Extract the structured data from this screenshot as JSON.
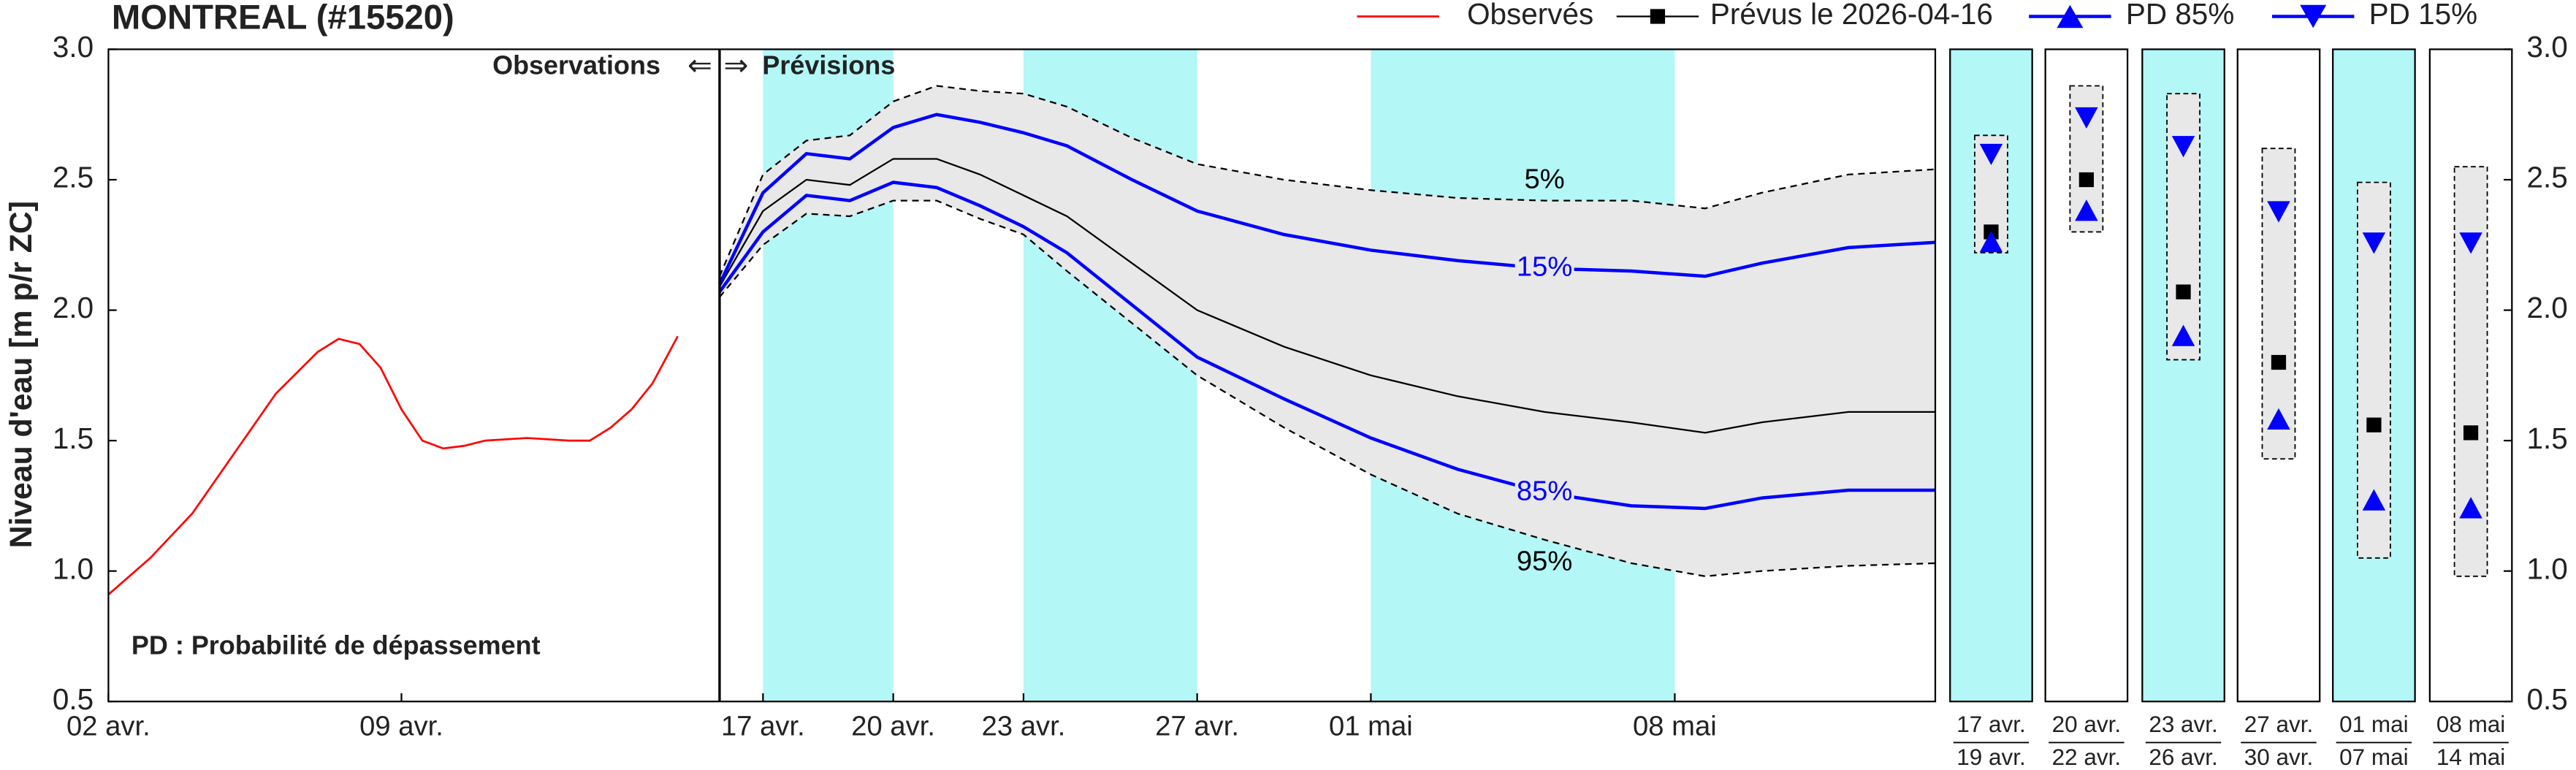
{
  "chart_data": [
    {
      "type": "line",
      "title": "MONTREAL (#15520)",
      "y_label": "Niveau d'eau [m p/r ZC]",
      "annotations": {
        "observations": "Observations",
        "left_arrow": "⇐",
        "right_arrow": "⇒",
        "forecasts": "Prévisions",
        "note": "PD : Probabilité de dépassement"
      },
      "ylim": [
        0.5,
        3.0
      ],
      "yticks": [
        0.5,
        {
          "value": 1,
          "label": "1.0"
        },
        1.5,
        {
          "value": 2,
          "label": "2.0"
        },
        2.5,
        {
          "value": 3,
          "label": "3.0"
        }
      ],
      "yminor": [
        0.6,
        0.7,
        0.8,
        0.9,
        1.1,
        1.2,
        1.3,
        1.4,
        1.6,
        1.7,
        1.8,
        1.9,
        2.1,
        2.2,
        2.3,
        2.4,
        2.6,
        2.7,
        2.8,
        2.9
      ],
      "grid": true,
      "observed": {
        "name": "Observés",
        "color": "#ff0000",
        "xlim": [
          2,
          16.6
        ],
        "xticks": [
          {
            "value": 2,
            "label": "02 avr."
          },
          {
            "value": 9,
            "label": "09 avr."
          }
        ],
        "xminor": [
          3,
          4,
          5,
          6,
          7,
          8,
          10,
          11,
          12,
          13,
          14,
          15,
          16
        ],
        "x": [
          2,
          3,
          4,
          5,
          6,
          7,
          7.5,
          8,
          8.5,
          9,
          9.5,
          10,
          10.5,
          11,
          12,
          13,
          13.5,
          14,
          14.5,
          15,
          15.6
        ],
        "values": [
          0.91,
          1.05,
          1.22,
          1.45,
          1.68,
          1.84,
          1.89,
          1.87,
          1.78,
          1.62,
          1.5,
          1.47,
          1.48,
          1.5,
          1.51,
          1.5,
          1.5,
          1.55,
          1.62,
          1.72,
          1.9
        ]
      },
      "forecast": {
        "xlim": [
          16,
          44
        ],
        "xticks": [
          {
            "value": 17,
            "label": "17 avr."
          },
          {
            "value": 20,
            "label": "20 avr."
          },
          {
            "value": 23,
            "label": "23 avr."
          },
          {
            "value": 27,
            "label": "27 avr."
          },
          {
            "value": 31,
            "label": "01 mai"
          },
          {
            "value": 38,
            "label": "08 mai"
          }
        ],
        "xminor": [
          18,
          19,
          21,
          22,
          24,
          25,
          26,
          28,
          29,
          30,
          32,
          33,
          34,
          35,
          36,
          37,
          39,
          40,
          41,
          42,
          43
        ],
        "shaded_periods": [
          [
            17,
            20
          ],
          [
            23,
            27
          ],
          [
            31,
            38
          ]
        ],
        "shade_color": "#b3f7f7",
        "band_color": "#e8e8e8",
        "x": [
          16,
          17,
          18,
          19,
          20,
          21,
          22,
          23,
          24,
          25.5,
          27,
          29,
          31,
          33,
          35,
          37,
          38.7,
          40,
          42,
          44
        ],
        "series": [
          {
            "color": "#000000",
            "values": [
              2.09,
              2.38,
              2.5,
              2.48,
              2.58,
              2.58,
              2.52,
              2.44,
              2.36,
              2.18,
              2.0,
              1.86,
              1.75,
              1.67,
              1.61,
              1.57,
              1.53,
              1.57,
              1.61,
              1.61
            ]
          },
          {
            "color": "#0000ff",
            "label": "15%",
            "values": [
              2.1,
              2.45,
              2.6,
              2.58,
              2.7,
              2.75,
              2.72,
              2.68,
              2.63,
              2.5,
              2.38,
              2.29,
              2.23,
              2.19,
              2.16,
              2.15,
              2.13,
              2.18,
              2.24,
              2.26
            ]
          },
          {
            "color": "#0000ff",
            "label": "85%",
            "values": [
              2.07,
              2.3,
              2.44,
              2.42,
              2.49,
              2.47,
              2.4,
              2.32,
              2.22,
              2.02,
              1.82,
              1.66,
              1.51,
              1.39,
              1.3,
              1.25,
              1.24,
              1.28,
              1.31,
              1.31
            ]
          },
          {
            "color": "#000000",
            "dash": true,
            "label": "5%",
            "values": [
              2.13,
              2.52,
              2.65,
              2.67,
              2.8,
              2.86,
              2.84,
              2.83,
              2.78,
              2.66,
              2.56,
              2.5,
              2.46,
              2.43,
              2.42,
              2.42,
              2.39,
              2.45,
              2.52,
              2.54
            ]
          },
          {
            "color": "#000000",
            "dash": true,
            "label": "95%",
            "values": [
              2.05,
              2.25,
              2.37,
              2.36,
              2.42,
              2.42,
              2.35,
              2.29,
              2.15,
              1.95,
              1.75,
              1.55,
              1.37,
              1.22,
              1.12,
              1.03,
              0.98,
              1.0,
              1.02,
              1.03
            ]
          }
        ]
      }
    },
    {
      "type": "range",
      "ylim": [
        0.5,
        3.0
      ],
      "yticks": [
        0.5,
        {
          "value": 1,
          "label": "1.0"
        },
        1.5,
        {
          "value": 2,
          "label": "2.0"
        },
        2.5,
        {
          "value": 3,
          "label": "3.0"
        }
      ],
      "shade_color": "#b3f7f7",
      "band_color": "#e8e8e8",
      "periods": [
        {
          "start": "17 avr.",
          "end": "19 avr.",
          "shaded": true
        },
        {
          "start": "20 avr.",
          "end": "22 avr.",
          "shaded": false
        },
        {
          "start": "23 avr.",
          "end": "26 avr.",
          "shaded": true
        },
        {
          "start": "27 avr.",
          "end": "30 avr.",
          "shaded": false
        },
        {
          "start": "01 mai",
          "end": "07 mai",
          "shaded": true
        },
        {
          "start": "08 mai",
          "end": "14 mai",
          "shaded": false
        }
      ],
      "range_low": [
        2.22,
        2.3,
        1.81,
        1.43,
        1.05,
        0.98
      ],
      "range_high": [
        2.67,
        2.86,
        2.83,
        2.62,
        2.49,
        2.55
      ],
      "series": [
        {
          "name": "Prévus le 2026-04-16",
          "color": "#000000",
          "marker": "square",
          "values": [
            2.3,
            2.5,
            2.07,
            1.8,
            1.56,
            1.53
          ]
        },
        {
          "name": "PD 85%",
          "color": "#0000ff",
          "marker": "triangle-up",
          "values": [
            2.26,
            2.38,
            1.9,
            1.58,
            1.27,
            1.24
          ]
        },
        {
          "name": "PD 15%",
          "color": "#0000ff",
          "marker": "triangle-down",
          "values": [
            2.6,
            2.74,
            2.63,
            2.38,
            2.26,
            2.26
          ]
        }
      ]
    }
  ]
}
